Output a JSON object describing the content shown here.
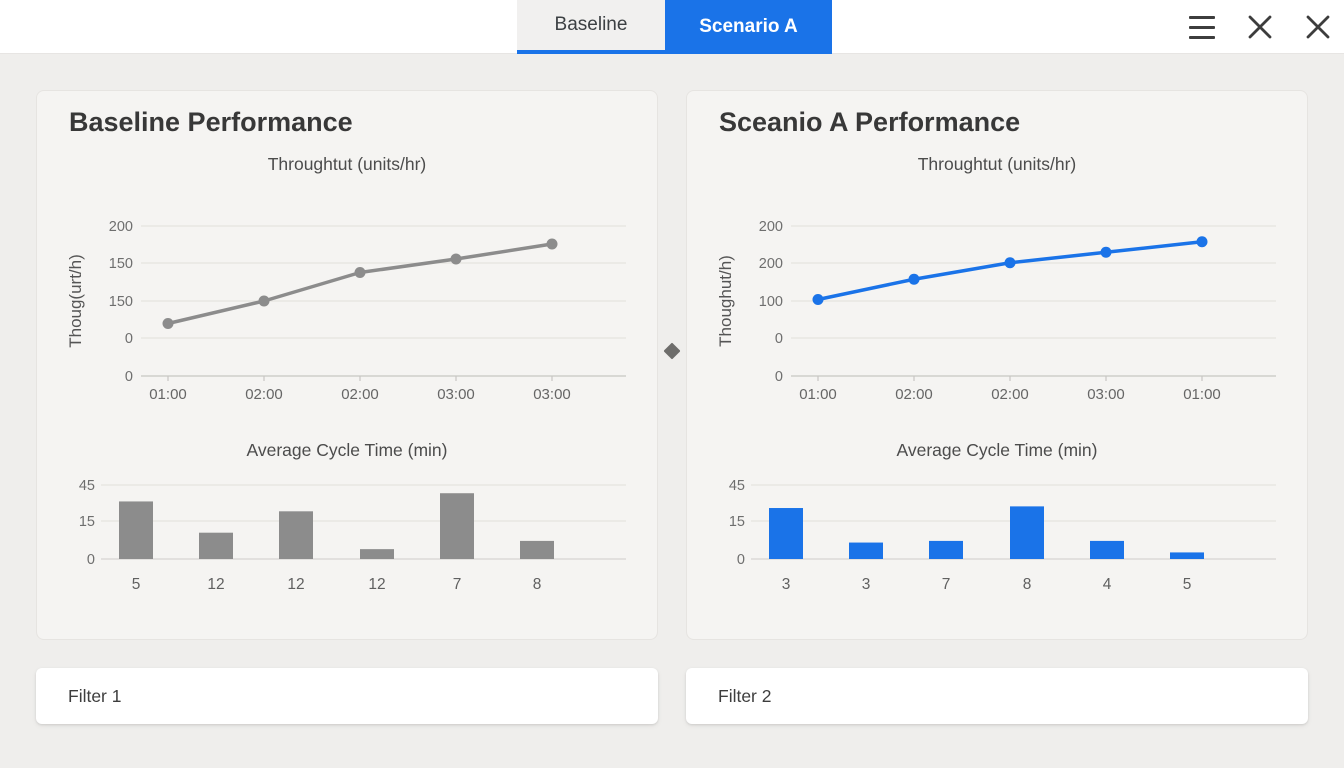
{
  "header": {
    "tabs": [
      {
        "label": "Baseline",
        "active": false
      },
      {
        "label": "Scenario A",
        "active": true
      }
    ]
  },
  "colors": {
    "accent_blue": "#1a73e8",
    "series_gray": "#8c8c8c",
    "grid": "#e5e3e0",
    "axis": "#c8c6c3",
    "tick_text": "#6e6e6e"
  },
  "panels": [
    {
      "id": "baseline",
      "title": "Baseline Performance",
      "filter_label": "Filter 1"
    },
    {
      "id": "scenario-a",
      "title": "Sceanio A Performance",
      "filter_label": "Filter 2"
    }
  ],
  "chart_data": [
    {
      "type": "line",
      "title": "Throughtut (units/hr)",
      "y_axis_label": "Thoug(urt/h)",
      "y_ticks": [
        "200",
        "150",
        "150",
        "0",
        "0"
      ],
      "x": [
        "01:00",
        "02:00",
        "02:00",
        "03:00",
        "03:00"
      ],
      "values": [
        70,
        100,
        138,
        156,
        176
      ],
      "ylim": [
        0,
        200
      ],
      "grid": true,
      "color": "#8c8c8c"
    },
    {
      "type": "bar",
      "title": "Average Cycle Time (min)",
      "y_ticks": [
        "45",
        "15",
        "0"
      ],
      "categories": [
        "5",
        "12",
        "12",
        "12",
        "7",
        "8"
      ],
      "values": [
        35,
        16,
        29,
        6,
        40,
        11
      ],
      "ylim": [
        0,
        45
      ],
      "grid": true,
      "color": "#8c8c8c"
    },
    {
      "type": "line",
      "title": "Throughtut (units/hr)",
      "y_axis_label": "Thoughut/h)",
      "y_ticks": [
        "200",
        "200",
        "100",
        "0",
        "0"
      ],
      "x": [
        "01:00",
        "02:00",
        "02:00",
        "03:00",
        "01:00"
      ],
      "values": [
        102,
        129,
        151,
        165,
        179
      ],
      "ylim": [
        0,
        200
      ],
      "grid": true,
      "color": "#1a73e8"
    },
    {
      "type": "bar",
      "title": "Average Cycle Time (min)",
      "y_ticks": [
        "45",
        "15",
        "0"
      ],
      "categories": [
        "3",
        "3",
        "7",
        "8",
        "4",
        "5"
      ],
      "values": [
        31,
        10,
        11,
        32,
        11,
        4
      ],
      "ylim": [
        0,
        45
      ],
      "grid": true,
      "color": "#1a73e8"
    }
  ]
}
